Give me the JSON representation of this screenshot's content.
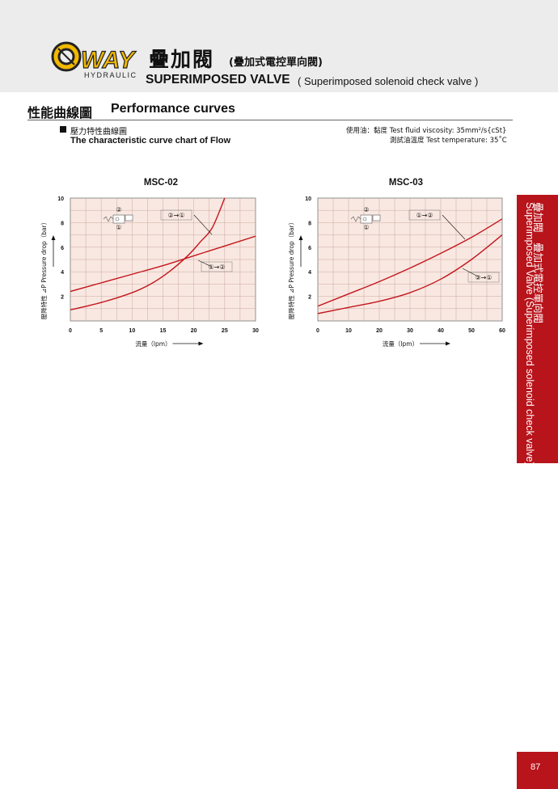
{
  "brand": {
    "logo_text": "WAY",
    "logo_sub": "HYDRAULIC"
  },
  "header": {
    "title_cn": "疊加閥",
    "title_cn_sub": "(疊加式電控單向閥)",
    "title_en": "SUPERIMPOSED VALVE",
    "title_en_sub": "( Superimposed solenoid check valve )"
  },
  "section": {
    "title_cn": "性能曲線圖",
    "title_en": "Performance curves"
  },
  "subsection": {
    "title_cn": "壓力特性曲線圖",
    "title_en": "The characteristic curve chart of Flow"
  },
  "notes": {
    "line1": "使用油：黏度 Test fluid viscosity: 35mm²/s{cSt}",
    "line2": "測試油溫度 Test temperature: 35˚C"
  },
  "side_tab": {
    "cn": "疊加閥　疊加式電控單向閥",
    "en": "Superimposed Valve (Superimposed solenoid check valve)"
  },
  "page_number": "87",
  "colors": {
    "curve": "#c4161c",
    "grid_bg": "#f9e8e1",
    "grid_line": "#c8a8a0",
    "tab_red": "#b8141b"
  },
  "chart_data": [
    {
      "type": "line",
      "title": "MSC-02",
      "xlabel": "流量（lpm）",
      "ylabel": "壓降特性 ⊿P Pressure drop（bar）",
      "xlim": [
        0,
        30
      ],
      "ylim": [
        0,
        10
      ],
      "xticks": [
        "0",
        "5",
        "10",
        "15",
        "20",
        "25",
        "30"
      ],
      "yticks": [
        "2",
        "4",
        "6",
        "8",
        "10"
      ],
      "grid": true,
      "series": [
        {
          "name": "②→①",
          "x": [
            0,
            5,
            10,
            13,
            16,
            19,
            21,
            23,
            25
          ],
          "y": [
            0.9,
            1.5,
            2.3,
            3.0,
            4.0,
            5.3,
            6.4,
            7.6,
            10.0
          ]
        },
        {
          "name": "①→②",
          "x": [
            0,
            5,
            10,
            15,
            20,
            25,
            30
          ],
          "y": [
            2.4,
            3.1,
            3.8,
            4.5,
            5.3,
            6.1,
            6.9
          ]
        }
      ],
      "legend_labels": [
        "②→①",
        "①→②"
      ],
      "symbol_labels": [
        "②",
        "①"
      ]
    },
    {
      "type": "line",
      "title": "MSC-03",
      "xlabel": "流量（lpm）",
      "ylabel": "壓降特性 ⊿P Pressure drop（bar）",
      "xlim": [
        0,
        60
      ],
      "ylim": [
        0,
        10
      ],
      "xticks": [
        "0",
        "10",
        "20",
        "30",
        "40",
        "50",
        "60"
      ],
      "yticks": [
        "2",
        "4",
        "6",
        "8",
        "10"
      ],
      "grid": true,
      "series": [
        {
          "name": "①→②",
          "x": [
            0,
            10,
            20,
            30,
            40,
            50,
            60
          ],
          "y": [
            1.2,
            2.2,
            3.2,
            4.3,
            5.5,
            6.8,
            8.3
          ]
        },
        {
          "name": "②→①",
          "x": [
            0,
            10,
            20,
            30,
            40,
            50,
            60
          ],
          "y": [
            0.6,
            1.1,
            1.6,
            2.3,
            3.4,
            5.0,
            7.0
          ]
        }
      ],
      "legend_labels": [
        "①→②",
        "②→①"
      ],
      "symbol_labels": [
        "②",
        "①"
      ]
    }
  ]
}
